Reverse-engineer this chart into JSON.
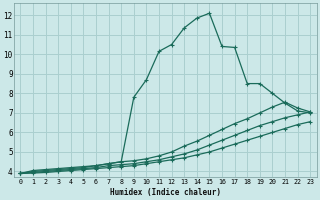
{
  "xlabel": "Humidex (Indice chaleur)",
  "bg_color": "#cce8e8",
  "grid_color": "#aacfcf",
  "line_color": "#1a6b5a",
  "xlim": [
    -0.5,
    23.5
  ],
  "ylim": [
    3.7,
    12.6
  ],
  "xticks": [
    0,
    1,
    2,
    3,
    4,
    5,
    6,
    7,
    8,
    9,
    10,
    11,
    12,
    13,
    14,
    15,
    16,
    17,
    18,
    19,
    20,
    21,
    22,
    23
  ],
  "yticks": [
    4,
    5,
    6,
    7,
    8,
    9,
    10,
    11,
    12
  ],
  "curve1_x": [
    0,
    1,
    2,
    3,
    4,
    5,
    6,
    7,
    8,
    9,
    10,
    11,
    12,
    13,
    14,
    15,
    16,
    17,
    18,
    19,
    20,
    21,
    22,
    23
  ],
  "curve1_y": [
    3.9,
    4.05,
    4.1,
    4.15,
    4.2,
    4.25,
    4.3,
    4.4,
    4.5,
    7.8,
    8.7,
    10.15,
    10.5,
    11.35,
    11.85,
    12.1,
    10.4,
    10.35,
    8.5,
    8.5,
    8.0,
    7.5,
    7.1,
    7.0
  ],
  "curve2_x": [
    0,
    1,
    2,
    3,
    4,
    5,
    6,
    7,
    8,
    9,
    10,
    11,
    12,
    13,
    14,
    15,
    16,
    17,
    18,
    19,
    20,
    21,
    22,
    23
  ],
  "curve2_y": [
    3.9,
    4.0,
    4.05,
    4.1,
    4.15,
    4.2,
    4.3,
    4.4,
    4.5,
    4.55,
    4.65,
    4.8,
    5.0,
    5.3,
    5.55,
    5.85,
    6.15,
    6.45,
    6.7,
    7.0,
    7.3,
    7.55,
    7.25,
    7.05
  ],
  "curve3_x": [
    0,
    1,
    2,
    3,
    4,
    5,
    6,
    7,
    8,
    9,
    10,
    11,
    12,
    13,
    14,
    15,
    16,
    17,
    18,
    19,
    20,
    21,
    22,
    23
  ],
  "curve3_y": [
    3.9,
    3.95,
    4.0,
    4.05,
    4.1,
    4.15,
    4.2,
    4.3,
    4.35,
    4.4,
    4.5,
    4.6,
    4.75,
    4.9,
    5.1,
    5.35,
    5.6,
    5.85,
    6.1,
    6.35,
    6.55,
    6.75,
    6.9,
    7.05
  ],
  "curve4_x": [
    0,
    1,
    2,
    3,
    4,
    5,
    6,
    7,
    8,
    9,
    10,
    11,
    12,
    13,
    14,
    15,
    16,
    17,
    18,
    19,
    20,
    21,
    22,
    23
  ],
  "curve4_y": [
    3.9,
    3.92,
    3.95,
    4.0,
    4.05,
    4.1,
    4.15,
    4.2,
    4.25,
    4.3,
    4.4,
    4.5,
    4.6,
    4.7,
    4.85,
    5.0,
    5.2,
    5.4,
    5.6,
    5.8,
    6.0,
    6.2,
    6.4,
    6.55
  ]
}
